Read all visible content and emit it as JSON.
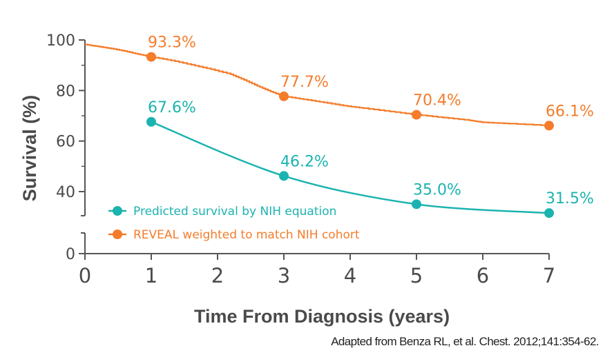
{
  "chart_data": {
    "type": "line",
    "xlabel": "Time From Diagnosis (years)",
    "ylabel": "Survival (%)",
    "x_ticks": [
      0,
      1,
      2,
      3,
      4,
      5,
      6,
      7
    ],
    "y_ticks_upper": [
      40,
      60,
      80,
      100
    ],
    "y_ticks_lower": [
      0
    ],
    "xlim": [
      0,
      7
    ],
    "y_axis_break": true,
    "grid": false,
    "legend_placement": "lower-left",
    "series": [
      {
        "name": "Predicted survival by NIH equation",
        "color": "#1bb3b0",
        "points": [
          {
            "x": 1,
            "y": 67.6,
            "label": "67.6%"
          },
          {
            "x": 3,
            "y": 46.2,
            "label": "46.2%"
          },
          {
            "x": 5,
            "y": 35.0,
            "label": "35.0%"
          },
          {
            "x": 7,
            "y": 31.5,
            "label": "31.5%"
          }
        ]
      },
      {
        "name": "REVEAL weighted to match NIH cohort",
        "color": "#f47c2a",
        "points": [
          {
            "x": 1,
            "y": 93.3,
            "label": "93.3%"
          },
          {
            "x": 3,
            "y": 77.7,
            "label": "77.7%"
          },
          {
            "x": 5,
            "y": 70.4,
            "label": "70.4%"
          },
          {
            "x": 7,
            "y": 66.1,
            "label": "66.1%"
          }
        ],
        "curve": [
          [
            0,
            98.2
          ],
          [
            0.2,
            97.4
          ],
          [
            0.4,
            96.6
          ],
          [
            0.6,
            95.6
          ],
          [
            0.8,
            94.4
          ],
          [
            1.0,
            93.3
          ],
          [
            1.3,
            91.9
          ],
          [
            1.6,
            90.2
          ],
          [
            1.9,
            88.4
          ],
          [
            2.2,
            86.4
          ],
          [
            2.4,
            84.2
          ],
          [
            2.6,
            81.8
          ],
          [
            2.8,
            79.6
          ],
          [
            3.0,
            77.7
          ],
          [
            3.3,
            76.5
          ],
          [
            3.6,
            75.3
          ],
          [
            3.9,
            74.0
          ],
          [
            4.2,
            73.0
          ],
          [
            4.6,
            71.7
          ],
          [
            5.0,
            70.4
          ],
          [
            5.4,
            69.3
          ],
          [
            5.8,
            68.2
          ],
          [
            6.0,
            67.4
          ],
          [
            6.4,
            66.9
          ],
          [
            7.0,
            66.1
          ]
        ]
      }
    ]
  },
  "source_note": "Adapted from Benza RL, et al. Chest. 2012;141:354-62."
}
